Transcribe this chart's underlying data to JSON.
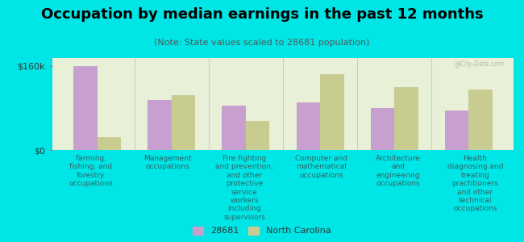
{
  "title": "Occupation by median earnings in the past 12 months",
  "subtitle": "(Note: State values scaled to 28681 population)",
  "background_color": "#00e5e5",
  "plot_bg_color": "#e8f0d8",
  "categories": [
    "Farming,\nfishing, and\nforestry\noccupations",
    "Management\noccupations",
    "Fire fighting\nand prevention,\nand other\nprotective\nservice\nworkers\nincluding\nsupervisors",
    "Computer and\nmathematical\noccupations",
    "Architecture\nand\nengineering\noccupations",
    "Health\ndiagnosing and\ntreating\npractitioners\nand other\ntechnical\noccupations"
  ],
  "values_28681": [
    160000,
    95000,
    85000,
    90000,
    80000,
    75000
  ],
  "values_nc": [
    25000,
    105000,
    55000,
    145000,
    120000,
    115000
  ],
  "color_28681": "#c8a0d0",
  "color_nc": "#c8cc90",
  "ylim": [
    0,
    175000
  ],
  "yticks": [
    0,
    160000
  ],
  "ytick_labels": [
    "$0",
    "$160k"
  ],
  "legend_28681": "28681",
  "legend_nc": "North Carolina",
  "watermark": "@City-Data.com",
  "title_fontsize": 13,
  "subtitle_fontsize": 8,
  "tick_label_fontsize": 6.5,
  "bar_width": 0.32
}
